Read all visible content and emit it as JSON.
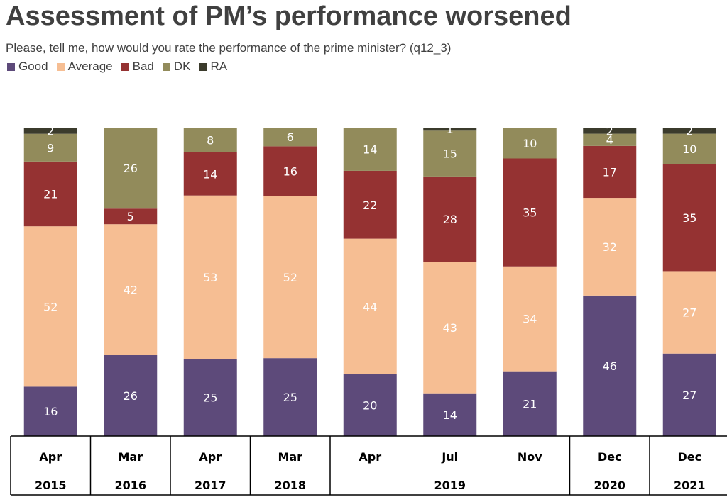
{
  "title": "Assessment of PM’s performance worsened",
  "subtitle": "Please, tell me, how would you rate the performance of the prime minister? (q12_3)",
  "legend": [
    {
      "name": "Good",
      "color": "#5d4a7a"
    },
    {
      "name": "Average",
      "color": "#f6be93"
    },
    {
      "name": "Bad",
      "color": "#953232"
    },
    {
      "name": "DK",
      "color": "#928b5b"
    },
    {
      "name": "RA",
      "color": "#3b3b2c"
    }
  ],
  "chart_data": {
    "type": "bar",
    "stacked": true,
    "title": "Assessment of PM’s performance worsened",
    "categories": [
      "Apr 2015",
      "Mar 2016",
      "Apr 2017",
      "Mar 2018",
      "Apr 2019",
      "Jul 2019",
      "Nov 2019",
      "Dec 2020",
      "Dec 2021"
    ],
    "months": [
      "Apr",
      "Mar",
      "Apr",
      "Mar",
      "Apr",
      "Jul",
      "Nov",
      "Dec",
      "Dec"
    ],
    "year_groups": [
      {
        "label": "2015",
        "span": 1
      },
      {
        "label": "2016",
        "span": 1
      },
      {
        "label": "2017",
        "span": 1
      },
      {
        "label": "2018",
        "span": 1
      },
      {
        "label": "2019",
        "span": 3
      },
      {
        "label": "2020",
        "span": 1
      },
      {
        "label": "2021",
        "span": 1
      }
    ],
    "series": [
      {
        "name": "Good",
        "color": "#5d4a7a",
        "values": [
          16,
          26,
          25,
          25,
          20,
          14,
          21,
          46,
          27
        ]
      },
      {
        "name": "Average",
        "color": "#f6be93",
        "values": [
          52,
          42,
          53,
          52,
          44,
          43,
          34,
          32,
          27
        ]
      },
      {
        "name": "Bad",
        "color": "#953232",
        "values": [
          21,
          5,
          14,
          16,
          22,
          28,
          35,
          17,
          35
        ]
      },
      {
        "name": "DK",
        "color": "#928b5b",
        "values": [
          9,
          26,
          8,
          6,
          14,
          15,
          10,
          4,
          10
        ]
      },
      {
        "name": "RA",
        "color": "#3b3b2c",
        "values": [
          2,
          0,
          0,
          0,
          0,
          1,
          0,
          2,
          2
        ]
      }
    ],
    "ylim": [
      0,
      100
    ],
    "xlabel": "",
    "ylabel": ""
  }
}
